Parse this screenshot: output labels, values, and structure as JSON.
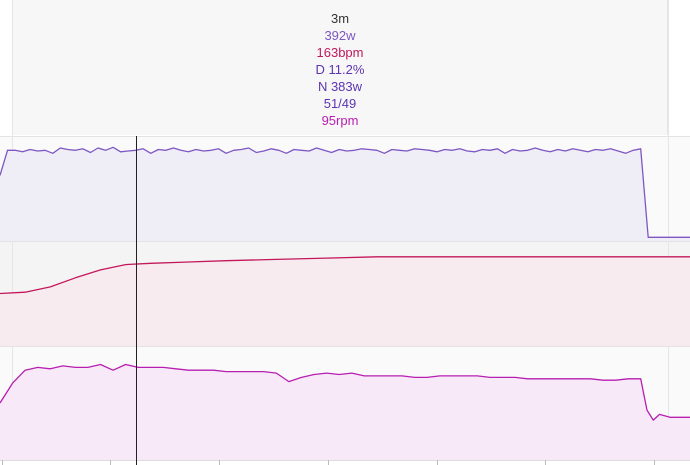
{
  "tooltip": {
    "time": "3m",
    "power": "392w",
    "heart_rate": "163bpm",
    "drift": "D 11.2%",
    "normalized_power": "N 383w",
    "balance": "51/49",
    "cadence": "95rpm"
  },
  "colors": {
    "time": "#333333",
    "power": "#7e57c2",
    "heart_rate": "#c2185b",
    "drift": "#5e35b1",
    "normalized_power": "#5e35b1",
    "balance": "#5e35b1",
    "cadence": "#b71fb0",
    "power_fill": "#efedf6",
    "hr_fill": "#f8ebef",
    "cadence_fill": "#f8e9f8",
    "cursor": "#222222"
  },
  "chart_data": [
    {
      "type": "area",
      "series": [
        {
          "values": [
            325,
            392,
            392,
            388,
            394,
            390,
            392,
            384,
            398,
            394,
            392,
            396,
            386,
            398,
            392,
            400,
            388,
            390,
            392,
            396,
            384,
            394,
            392,
            398,
            392,
            388,
            394,
            390,
            392,
            396,
            384,
            392,
            394,
            398,
            386,
            390,
            396,
            392,
            384,
            394,
            392,
            390,
            398,
            392,
            386,
            394,
            390,
            392,
            396,
            394,
            392,
            384,
            394,
            392,
            390,
            396,
            394,
            392,
            388,
            394,
            392,
            396,
            390,
            388,
            394,
            392,
            396,
            384,
            394,
            390,
            392,
            398,
            392,
            388,
            394,
            390,
            396,
            392,
            388,
            394,
            392,
            396,
            390,
            384,
            392,
            396,
            160,
            160
          ],
          "x": [
            0,
            1.8,
            3.6,
            5.4,
            7.2,
            9,
            10.8,
            12.6,
            14.4,
            16.2,
            18,
            19.8,
            21.6,
            23.4,
            25.2,
            27,
            28.8,
            30.6,
            32.4,
            34.2,
            36,
            37.8,
            39.6,
            41.4,
            43.2,
            45,
            46.8,
            48.6,
            50.4,
            52.2,
            54,
            55.8,
            57.6,
            59.4,
            61.2,
            63,
            64.8,
            66.6,
            68.4,
            70.2,
            72,
            73.8,
            75.6,
            77.4,
            79.2,
            81,
            82.8,
            84.6,
            86.4,
            88.2,
            90,
            91.8,
            93.6,
            95.4,
            97.2,
            99,
            100.8,
            102.6,
            104.4,
            106.2,
            108,
            109.8,
            111.6,
            113.4,
            115.2,
            117,
            118.8,
            120.6,
            122.4,
            124.2,
            126,
            127.8,
            129.6,
            131.4,
            133.2,
            135,
            136.8,
            138.6,
            140.4,
            142.2,
            144,
            145.8,
            147.6,
            149.4,
            151.2,
            153,
            154.8,
            156.6
          ]
        }
      ],
      "ylim": [
        150,
        430
      ]
    },
    {
      "type": "area",
      "series": [
        {
          "x": [
            0,
            6,
            12,
            18,
            24,
            30,
            36,
            45,
            54,
            66,
            78,
            90,
            105,
            120,
            135,
            150,
            160
          ],
          "values": [
            140,
            141,
            145,
            152,
            158,
            162,
            163,
            164,
            165,
            166,
            167,
            168,
            168,
            168,
            168,
            168,
            168
          ]
        }
      ],
      "ylim": [
        100,
        180
      ]
    },
    {
      "type": "area",
      "series": [
        {
          "x": [
            0,
            3,
            6,
            9,
            12,
            15,
            18,
            21,
            24,
            27,
            30,
            33,
            36,
            39,
            42,
            45,
            48,
            51,
            54,
            57,
            60,
            63,
            66,
            69,
            72,
            75,
            78,
            81,
            84,
            87,
            90,
            93,
            96,
            99,
            102,
            105,
            108,
            111,
            114,
            117,
            120,
            123,
            126,
            129,
            132,
            135,
            138,
            141,
            144,
            147,
            150,
            153,
            154.5,
            156,
            157.5,
            160
          ],
          "values": [
            70,
            84,
            93,
            95,
            94,
            96,
            95,
            95,
            97,
            93,
            97,
            95,
            95,
            95,
            94,
            93,
            93,
            93,
            92,
            92,
            92,
            92,
            91,
            85,
            88,
            90,
            91,
            90,
            91,
            89,
            89,
            89,
            89,
            88,
            88,
            89,
            89,
            89,
            89,
            88,
            88,
            88,
            87,
            87,
            87,
            87,
            87,
            87,
            86,
            86,
            87,
            87,
            65,
            58,
            62,
            60
          ]
        }
      ],
      "ylim": [
        30,
        110
      ]
    }
  ]
}
